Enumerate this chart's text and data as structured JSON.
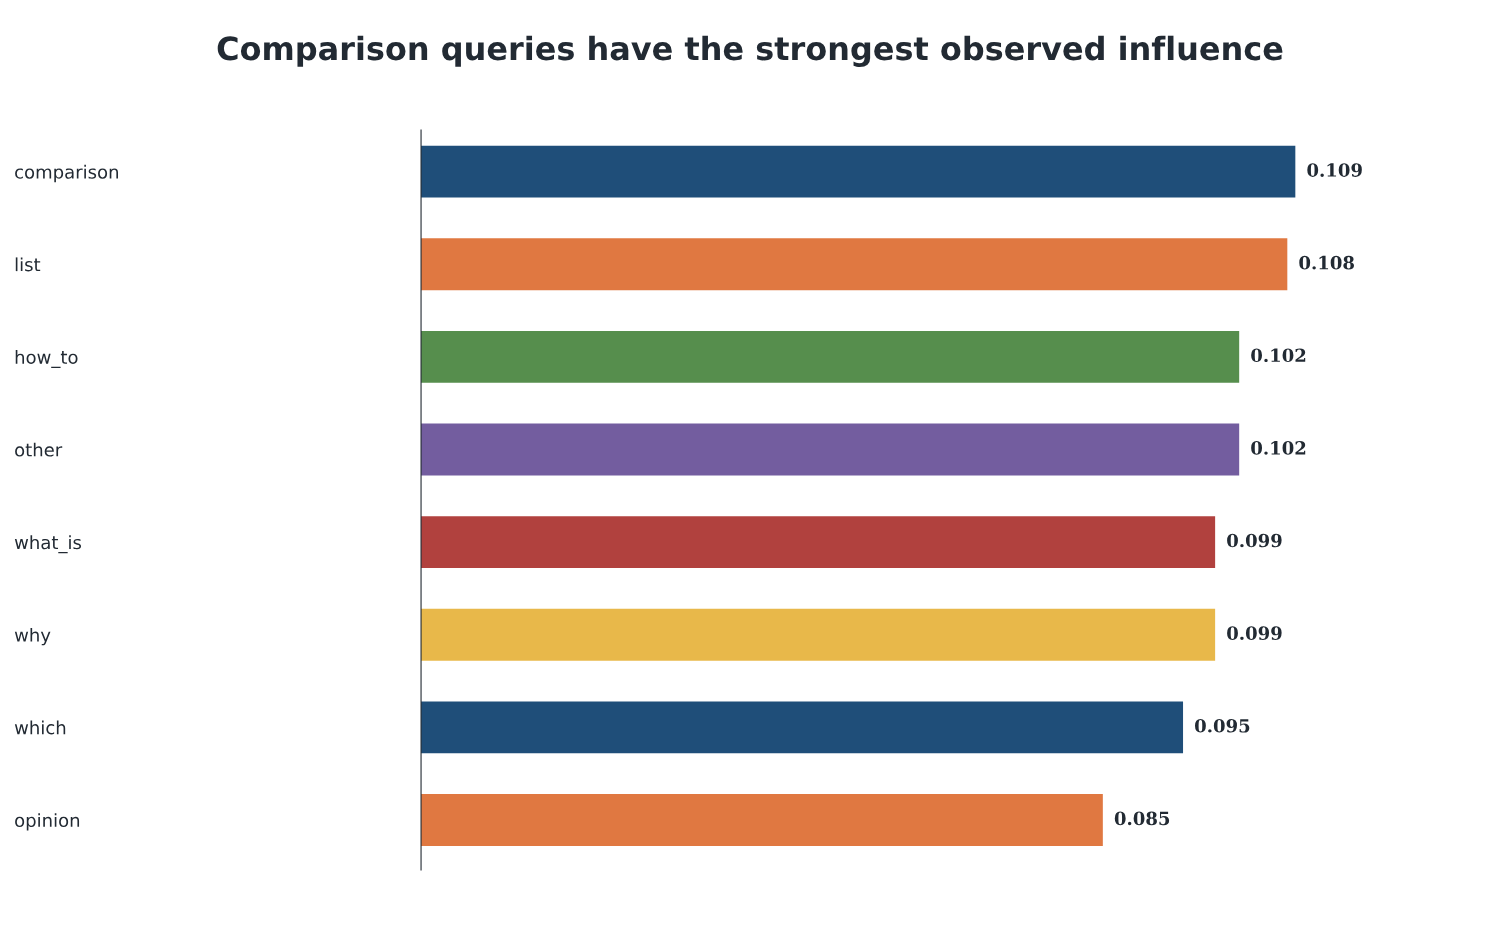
{
  "chart_data": {
    "type": "bar",
    "orientation": "horizontal",
    "title": "Comparison queries have the strongest observed influence",
    "categories": [
      "comparison",
      "list",
      "how_to",
      "other",
      "what_is",
      "why",
      "which",
      "opinion"
    ],
    "values": [
      0.109,
      0.108,
      0.102,
      0.102,
      0.099,
      0.099,
      0.095,
      0.085
    ],
    "colors": [
      "#1f4e79",
      "#e07841",
      "#568e4d",
      "#735d9f",
      "#b1413e",
      "#e8b84a",
      "#1f4e79",
      "#e07841"
    ],
    "data_labels": true,
    "grid": false,
    "legend": false,
    "tick_labels": "y"
  }
}
